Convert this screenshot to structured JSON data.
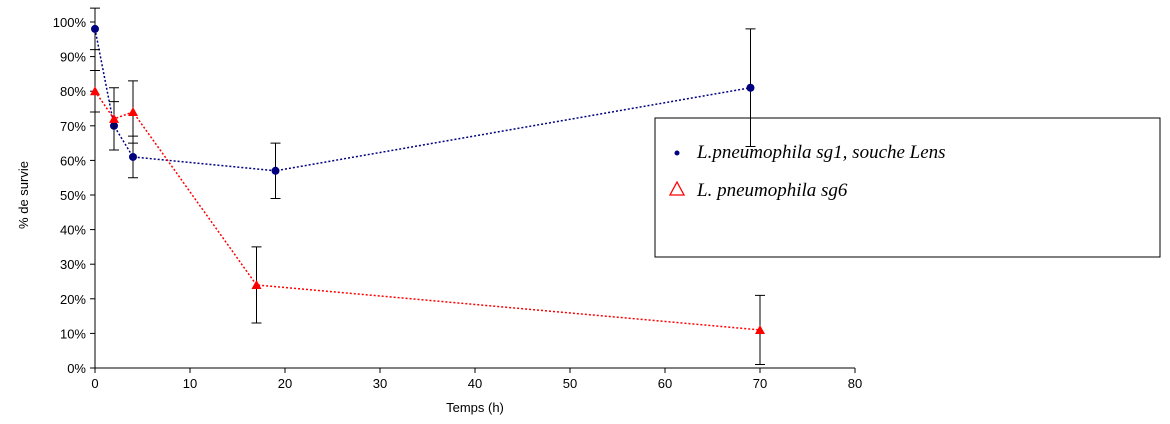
{
  "chart_data": {
    "type": "line",
    "x_label": "Temps (h)",
    "y_label": "% de survie",
    "xlim": [
      0,
      80
    ],
    "xticks": [
      0,
      10,
      20,
      30,
      40,
      50,
      60,
      70,
      80
    ],
    "ylim": [
      0,
      100
    ],
    "yticks": [
      {
        "value": 0,
        "label": "0%"
      },
      {
        "value": 10,
        "label": "10%"
      },
      {
        "value": 20,
        "label": "20%"
      },
      {
        "value": 30,
        "label": "30%"
      },
      {
        "value": 40,
        "label": "40%"
      },
      {
        "value": 50,
        "label": "50%"
      },
      {
        "value": 60,
        "label": "60%"
      },
      {
        "value": 70,
        "label": "70%"
      },
      {
        "value": 80,
        "label": "80%"
      },
      {
        "value": 90,
        "label": "90%"
      },
      {
        "value": 100,
        "label": "100%"
      }
    ],
    "grid": false,
    "series": [
      {
        "name": "L.pneumophila sg1, souche Lens",
        "color": "#000080",
        "marker": "circle",
        "x": [
          0,
          2,
          4,
          19,
          69
        ],
        "values": [
          98,
          70,
          61,
          57,
          81
        ],
        "errors": [
          6,
          7,
          6,
          8,
          17
        ]
      },
      {
        "name": "L. pneumophila sg6",
        "color": "#ff0000",
        "marker": "triangle",
        "x": [
          0,
          2,
          4,
          17,
          70
        ],
        "values": [
          80,
          72,
          74,
          24,
          11
        ],
        "errors": [
          6,
          9,
          9,
          11,
          10
        ]
      }
    ]
  }
}
